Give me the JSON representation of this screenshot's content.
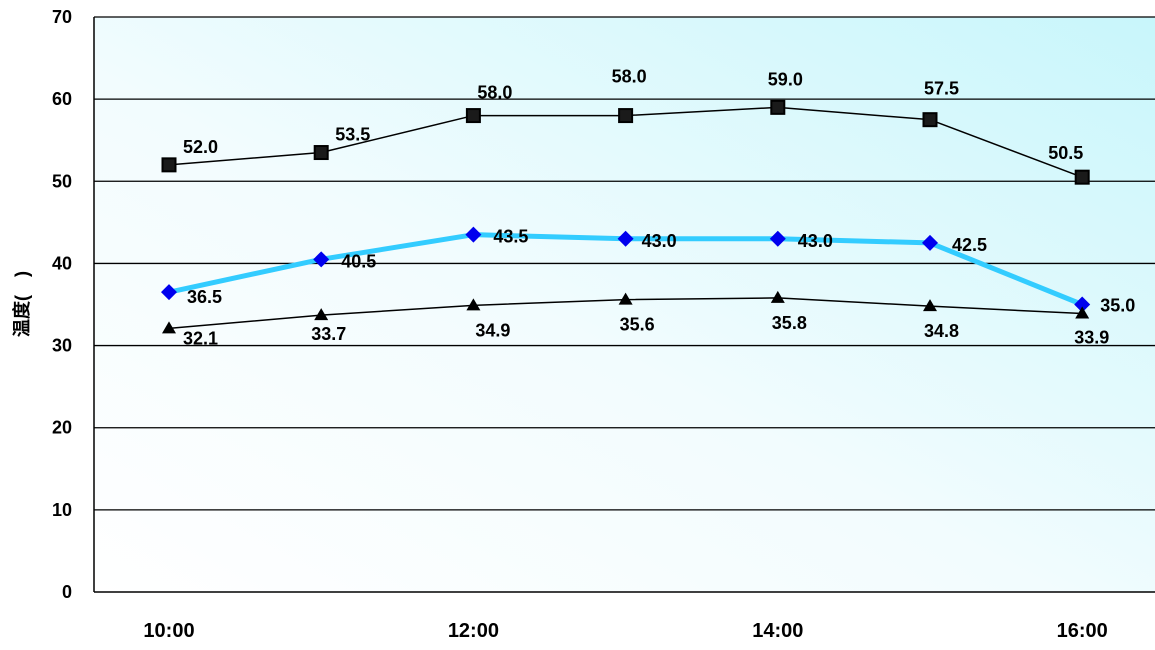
{
  "chart_data": {
    "type": "line",
    "title": "",
    "xlabel": "",
    "ylabel": "温度(　)",
    "ylim": [
      0,
      70
    ],
    "yticks": [
      0,
      10,
      20,
      30,
      40,
      50,
      60,
      70
    ],
    "ytick_labels": [
      "0",
      "10",
      "20",
      "30",
      "40",
      "50",
      "60",
      "70"
    ],
    "categories": [
      "10:00",
      "11:00",
      "12:00",
      "13:00",
      "14:00",
      "15:00",
      "16:00"
    ],
    "xtick_labels": [
      "10:00",
      "",
      "12:00",
      "",
      "14:00",
      "",
      "16:00"
    ],
    "grid": "horizontal",
    "legend": "none",
    "series": [
      {
        "values": [
          52.0,
          53.5,
          58.0,
          58.0,
          59.0,
          57.5,
          50.5
        ],
        "labels": [
          "52.0",
          "53.5",
          "58.0",
          "58.0",
          "59.0",
          "57.5",
          "50.5"
        ],
        "marker": "square",
        "line_color": "#000000",
        "marker_color": "#1a1a1a"
      },
      {
        "values": [
          36.5,
          40.5,
          43.5,
          43.0,
          43.0,
          42.5,
          35.0
        ],
        "labels": [
          "36.5",
          "40.5",
          "43.5",
          "43.0",
          "43.0",
          "42.5",
          "35.0"
        ],
        "marker": "diamond",
        "line_color": "#33ccff",
        "marker_color": "#0000ee"
      },
      {
        "values": [
          32.1,
          33.7,
          34.9,
          35.6,
          35.8,
          34.8,
          33.9
        ],
        "labels": [
          "32.1",
          "33.7",
          "34.9",
          "35.6",
          "35.8",
          "34.8",
          "33.9"
        ],
        "marker": "triangle",
        "line_color": "#000000",
        "marker_color": "#000000"
      }
    ]
  }
}
